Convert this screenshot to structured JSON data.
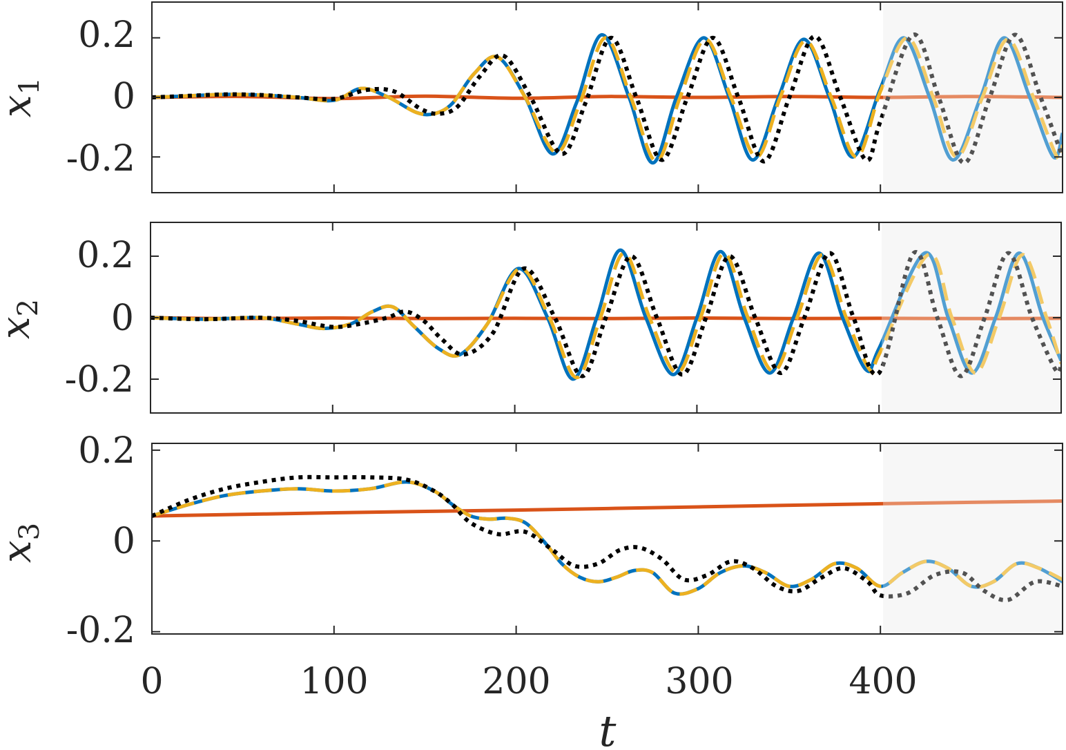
{
  "chart_data": [
    {
      "type": "line",
      "ylabel": "x",
      "ylabel_subscript": "1",
      "xlim": [
        0,
        500
      ],
      "ylim": [
        -0.32,
        0.32
      ],
      "yticks": [
        -0.2,
        0,
        0.2
      ],
      "ytick_labels": [
        "-0.2",
        "0",
        "0.2"
      ],
      "xticks": [
        0,
        100,
        200,
        300,
        400
      ],
      "shaded_region": [
        400,
        500
      ],
      "grid": false,
      "series": [
        {
          "style": "solid",
          "color": "#0072BD",
          "x": [
            0,
            20,
            40,
            60,
            80,
            100,
            115,
            130,
            145,
            155,
            165,
            177,
            190,
            205,
            220,
            233,
            247,
            262,
            275,
            288,
            303,
            317,
            330,
            344,
            358,
            372,
            385,
            400,
            413,
            427,
            440,
            455,
            468,
            482,
            495,
            500
          ],
          "y": [
            0,
            0.005,
            0.01,
            0.008,
            0.0,
            -0.01,
            0.03,
            0.0,
            -0.05,
            -0.055,
            -0.02,
            0.08,
            0.135,
            0.0,
            -0.19,
            -0.02,
            0.21,
            0.0,
            -0.22,
            0.0,
            0.2,
            0.0,
            -0.21,
            0.0,
            0.195,
            0.0,
            -0.2,
            0.03,
            0.2,
            0.0,
            -0.21,
            0.0,
            0.2,
            0.0,
            -0.2,
            -0.12
          ]
        },
        {
          "style": "dashed",
          "color": "#EDB120",
          "x": [
            0,
            20,
            40,
            60,
            80,
            100,
            115,
            130,
            145,
            155,
            165,
            177,
            190,
            205,
            222,
            235,
            249,
            263,
            277,
            290,
            304,
            318,
            332,
            345,
            359,
            373,
            387,
            400,
            415,
            429,
            442,
            456,
            470,
            484,
            497,
            500
          ],
          "y": [
            0,
            0.005,
            0.01,
            0.008,
            0.0,
            -0.01,
            0.03,
            0.0,
            -0.05,
            -0.055,
            -0.02,
            0.08,
            0.135,
            0.0,
            -0.185,
            -0.02,
            0.2,
            0.0,
            -0.215,
            0.0,
            0.195,
            0.0,
            -0.2,
            0.0,
            0.19,
            0.0,
            -0.2,
            0.02,
            0.2,
            0.0,
            -0.2,
            0.0,
            0.195,
            0.0,
            -0.2,
            -0.16
          ]
        },
        {
          "style": "dotted",
          "color": "#000000",
          "x": [
            0,
            20,
            40,
            60,
            80,
            100,
            118,
            133,
            148,
            158,
            168,
            180,
            193,
            208,
            225,
            238,
            252,
            266,
            280,
            294,
            308,
            322,
            336,
            350,
            364,
            378,
            392,
            400,
            418,
            432,
            446,
            460,
            474,
            488,
            500
          ],
          "y": [
            0,
            0.005,
            0.01,
            0.008,
            0.0,
            -0.005,
            0.025,
            0.02,
            -0.04,
            -0.055,
            -0.03,
            0.07,
            0.14,
            0.0,
            -0.19,
            -0.02,
            0.2,
            0.0,
            -0.21,
            0.0,
            0.2,
            0.0,
            -0.215,
            0.0,
            0.205,
            0.0,
            -0.21,
            -0.08,
            0.21,
            0.0,
            -0.22,
            0.0,
            0.21,
            0.0,
            -0.2
          ]
        },
        {
          "style": "solid",
          "color": "#D95319",
          "x": [
            0,
            50,
            100,
            150,
            200,
            250,
            300,
            350,
            400,
            450,
            500
          ],
          "y": [
            0,
            0.003,
            -0.004,
            0.004,
            -0.003,
            0.003,
            0.0,
            0.003,
            0.0,
            0.003,
            0.0
          ]
        }
      ]
    },
    {
      "type": "line",
      "ylabel": "x",
      "ylabel_subscript": "2",
      "xlim": [
        0,
        500
      ],
      "ylim": [
        -0.31,
        0.31
      ],
      "yticks": [
        -0.2,
        0,
        0.2
      ],
      "ytick_labels": [
        "-0.2",
        "0",
        "0.2"
      ],
      "xticks": [
        0,
        100,
        200,
        300,
        400
      ],
      "shaded_region": [
        400,
        500
      ],
      "grid": false,
      "series": [
        {
          "style": "solid",
          "color": "#0072BD",
          "x": [
            0,
            30,
            60,
            80,
            95,
            110,
            122,
            133,
            145,
            158,
            170,
            185,
            202,
            218,
            232,
            245,
            258,
            272,
            287,
            300,
            313,
            326,
            340,
            353,
            367,
            380,
            393,
            400,
            425,
            438,
            451,
            464,
            477,
            490,
            500
          ],
          "y": [
            0,
            -0.005,
            0.0,
            -0.02,
            -0.035,
            -0.02,
            0.02,
            0.035,
            -0.03,
            -0.1,
            -0.12,
            -0.02,
            0.16,
            0.0,
            -0.2,
            0.0,
            0.22,
            0.0,
            -0.185,
            0.0,
            0.215,
            0.0,
            -0.18,
            0.0,
            0.21,
            0.0,
            -0.17,
            -0.1,
            0.21,
            0.0,
            -0.18,
            0.0,
            0.21,
            0.0,
            -0.14
          ]
        },
        {
          "style": "dashed",
          "color": "#EDB120",
          "x": [
            0,
            30,
            60,
            80,
            95,
            110,
            122,
            133,
            145,
            158,
            170,
            185,
            203,
            219,
            234,
            247,
            260,
            274,
            289,
            302,
            315,
            328,
            342,
            355,
            369,
            382,
            395,
            400,
            427,
            440,
            453,
            466,
            479,
            492,
            500
          ],
          "y": [
            0,
            -0.005,
            0.0,
            -0.02,
            -0.035,
            -0.02,
            0.02,
            0.035,
            -0.03,
            -0.1,
            -0.12,
            -0.02,
            0.16,
            0.0,
            -0.195,
            0.0,
            0.21,
            0.0,
            -0.18,
            0.0,
            0.21,
            0.0,
            -0.175,
            0.0,
            0.205,
            0.0,
            -0.17,
            -0.12,
            0.205,
            0.0,
            -0.18,
            0.0,
            0.205,
            0.0,
            -0.15
          ]
        },
        {
          "style": "dotted",
          "color": "#000000",
          "x": [
            0,
            30,
            60,
            80,
            100,
            115,
            130,
            140,
            150,
            160,
            172,
            188,
            205,
            222,
            237,
            250,
            264,
            278,
            292,
            305,
            318,
            332,
            346,
            359,
            373,
            386,
            400,
            419,
            432,
            445,
            458,
            471,
            484,
            497,
            500
          ],
          "y": [
            0,
            -0.005,
            0.0,
            -0.01,
            -0.03,
            -0.02,
            0.0,
            0.02,
            -0.01,
            -0.07,
            -0.12,
            -0.05,
            0.16,
            0.0,
            -0.19,
            0.0,
            0.2,
            0.0,
            -0.185,
            0.0,
            0.2,
            0.0,
            -0.18,
            0.0,
            0.21,
            0.0,
            -0.18,
            0.21,
            0.0,
            -0.19,
            0.0,
            0.21,
            0.0,
            -0.17,
            -0.15
          ]
        },
        {
          "style": "solid",
          "color": "#D95319",
          "x": [
            0,
            50,
            100,
            150,
            200,
            250,
            300,
            350,
            400,
            450,
            500
          ],
          "y": [
            0,
            -0.003,
            -0.001,
            -0.003,
            -0.002,
            -0.003,
            -0.001,
            -0.003,
            -0.002,
            -0.003,
            -0.002
          ]
        }
      ]
    },
    {
      "type": "line",
      "ylabel": "x",
      "ylabel_subscript": "3",
      "xlabel": "t",
      "xlim": [
        0,
        500
      ],
      "ylim": [
        -0.205,
        0.215
      ],
      "yticks": [
        -0.2,
        0,
        0.2
      ],
      "ytick_labels": [
        "-0.2",
        "0",
        "0.2"
      ],
      "xticks": [
        0,
        100,
        200,
        300,
        400
      ],
      "xtick_labels": [
        "0",
        "100",
        "200",
        "300",
        "400"
      ],
      "shaded_region": [
        400,
        500
      ],
      "grid": false,
      "series": [
        {
          "style": "solid",
          "color": "#0072BD",
          "x": [
            0,
            20,
            40,
            60,
            80,
            100,
            120,
            140,
            155,
            165,
            175,
            185,
            195,
            205,
            215,
            225,
            235,
            245,
            255,
            265,
            275,
            287,
            300,
            312,
            325,
            337,
            350,
            362,
            375,
            387,
            400,
            412,
            425,
            437,
            450,
            462,
            475,
            487,
            500
          ],
          "y": [
            0.055,
            0.08,
            0.1,
            0.11,
            0.115,
            0.11,
            0.115,
            0.13,
            0.11,
            0.08,
            0.055,
            0.048,
            0.05,
            0.04,
            0.0,
            -0.05,
            -0.08,
            -0.09,
            -0.08,
            -0.065,
            -0.07,
            -0.115,
            -0.105,
            -0.07,
            -0.055,
            -0.07,
            -0.1,
            -0.085,
            -0.05,
            -0.06,
            -0.1,
            -0.07,
            -0.045,
            -0.06,
            -0.1,
            -0.09,
            -0.05,
            -0.06,
            -0.09
          ]
        },
        {
          "style": "dashed",
          "color": "#EDB120",
          "x": [
            0,
            20,
            40,
            60,
            80,
            100,
            120,
            140,
            155,
            165,
            175,
            185,
            195,
            205,
            215,
            225,
            235,
            245,
            255,
            265,
            275,
            287,
            300,
            312,
            325,
            337,
            350,
            362,
            375,
            387,
            400,
            412,
            425,
            437,
            450,
            462,
            475,
            487,
            500
          ],
          "y": [
            0.055,
            0.08,
            0.1,
            0.11,
            0.115,
            0.11,
            0.115,
            0.13,
            0.11,
            0.08,
            0.055,
            0.048,
            0.05,
            0.04,
            0.0,
            -0.05,
            -0.08,
            -0.09,
            -0.08,
            -0.065,
            -0.07,
            -0.115,
            -0.105,
            -0.07,
            -0.055,
            -0.07,
            -0.1,
            -0.085,
            -0.05,
            -0.06,
            -0.1,
            -0.07,
            -0.045,
            -0.06,
            -0.1,
            -0.09,
            -0.05,
            -0.06,
            -0.085
          ]
        },
        {
          "style": "dotted",
          "color": "#000000",
          "x": [
            0,
            20,
            40,
            60,
            80,
            100,
            120,
            140,
            155,
            165,
            175,
            190,
            205,
            220,
            232,
            245,
            257,
            268,
            280,
            292,
            305,
            318,
            330,
            343,
            355,
            368,
            380,
            393,
            400,
            415,
            430,
            445,
            457,
            470,
            485,
            500
          ],
          "y": [
            0.055,
            0.09,
            0.115,
            0.13,
            0.14,
            0.14,
            0.14,
            0.135,
            0.11,
            0.08,
            0.04,
            0.015,
            0.02,
            -0.02,
            -0.055,
            -0.05,
            -0.02,
            -0.015,
            -0.04,
            -0.085,
            -0.075,
            -0.045,
            -0.06,
            -0.1,
            -0.11,
            -0.08,
            -0.06,
            -0.09,
            -0.12,
            -0.115,
            -0.075,
            -0.07,
            -0.11,
            -0.13,
            -0.09,
            -0.1
          ]
        },
        {
          "style": "solid",
          "color": "#D95319",
          "x": [
            0,
            100,
            200,
            300,
            400,
            500
          ],
          "y": [
            0.055,
            0.062,
            0.068,
            0.075,
            0.082,
            0.088
          ]
        }
      ]
    }
  ]
}
